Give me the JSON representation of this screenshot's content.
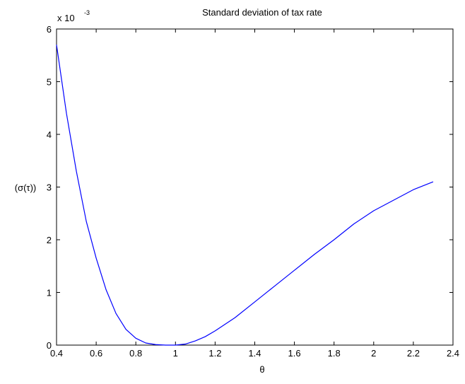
{
  "chart_data": {
    "type": "line",
    "title": "Standard deviation of tax rate",
    "xlabel": "θ",
    "ylabel": "(σ(τ))",
    "y_exponent_base": "x 10",
    "y_exponent_power": "-3",
    "xlim": [
      0.4,
      2.4
    ],
    "ylim": [
      0,
      6
    ],
    "xticks": [
      0.4,
      0.6,
      0.8,
      1,
      1.2,
      1.4,
      1.6,
      1.8,
      2,
      2.2,
      2.4
    ],
    "xtick_labels": [
      "0.4",
      "0.6",
      "0.8",
      "1",
      "1.2",
      "1.4",
      "1.6",
      "1.8",
      "2",
      "2.2",
      "2.4"
    ],
    "yticks": [
      0,
      1,
      2,
      3,
      4,
      5,
      6
    ],
    "ytick_labels": [
      "0",
      "1",
      "2",
      "3",
      "4",
      "5",
      "6"
    ],
    "grid": false,
    "line_color": "#0000ff",
    "series": [
      {
        "x": [
          0.4,
          0.45,
          0.5,
          0.55,
          0.6,
          0.65,
          0.7,
          0.75,
          0.8,
          0.85,
          0.9,
          0.95,
          1.0,
          1.05,
          1.1,
          1.15,
          1.2,
          1.3,
          1.4,
          1.5,
          1.6,
          1.7,
          1.8,
          1.9,
          2.0,
          2.1,
          2.2,
          2.3
        ],
        "y": [
          5.7,
          4.4,
          3.3,
          2.35,
          1.65,
          1.05,
          0.6,
          0.3,
          0.13,
          0.04,
          0.01,
          0.0,
          0.0,
          0.02,
          0.08,
          0.16,
          0.27,
          0.52,
          0.82,
          1.12,
          1.42,
          1.72,
          2.0,
          2.3,
          2.55,
          2.75,
          2.95,
          3.1
        ]
      }
    ]
  }
}
